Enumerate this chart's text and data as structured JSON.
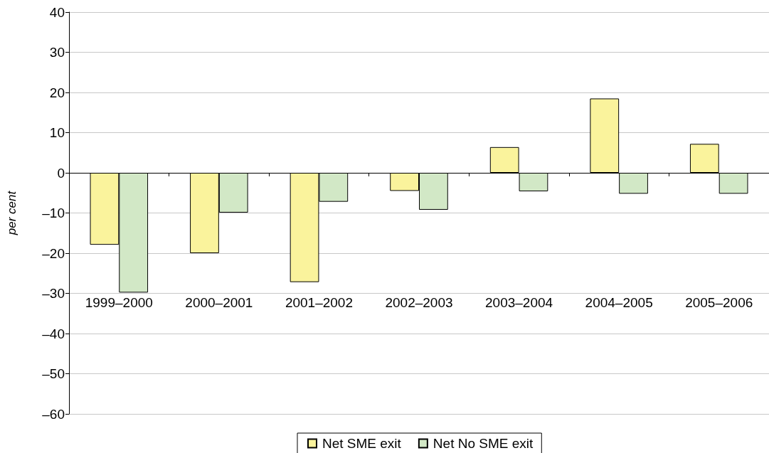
{
  "chart_data": {
    "type": "bar",
    "ylabel": "per cent",
    "categories": [
      "1999–2000",
      "2000–2001",
      "2001–2002",
      "2002–2003",
      "2003–2004",
      "2004–2005",
      "2005–2006"
    ],
    "series": [
      {
        "name": "Net SME exit",
        "color": "#faf39c",
        "values": [
          -17.9,
          -20.0,
          -27.2,
          -4.5,
          6.4,
          18.5,
          7.2
        ]
      },
      {
        "name": "Net No SME exit",
        "color": "#d2e8c6",
        "values": [
          -29.8,
          -9.9,
          -7.2,
          -9.2,
          -4.6,
          -5.2,
          -5.2
        ]
      }
    ],
    "ylim": [
      -60,
      40
    ],
    "yticks": [
      40,
      30,
      20,
      10,
      0,
      {
        "value": -10,
        "label": "–10"
      },
      {
        "value": -20,
        "label": "–20"
      },
      {
        "value": -30,
        "label": "–30"
      },
      {
        "value": -40,
        "label": "–40"
      },
      {
        "value": -50,
        "label": "–50"
      },
      {
        "value": -60,
        "label": "–60"
      }
    ],
    "grid": "y",
    "legend": "bottom"
  }
}
